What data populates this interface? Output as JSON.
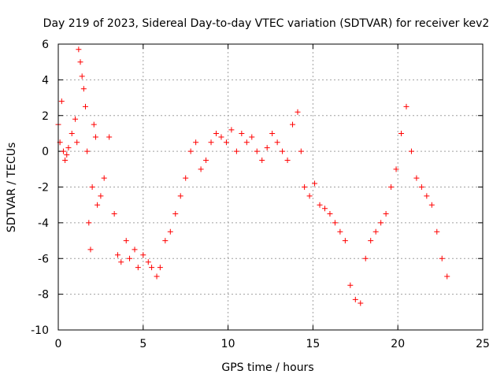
{
  "chart_data": {
    "type": "scatter",
    "title": "Day 219 of 2023, Sidereal Day-to-day VTEC variation (SDTVAR) for receiver kev2",
    "xlabel": "GPS time / hours",
    "ylabel": "SDTVAR / TECUs",
    "xlim": [
      0,
      25
    ],
    "ylim": [
      -10,
      6
    ],
    "xticks": [
      0,
      5,
      10,
      15,
      20,
      25
    ],
    "yticks": [
      -10,
      -8,
      -6,
      -4,
      -2,
      0,
      2,
      4,
      6
    ],
    "xtick_labels": [
      "0",
      "5",
      "10",
      "15",
      "20",
      "25"
    ],
    "ytick_labels": [
      "-10",
      "-8",
      "-6",
      "-4",
      "-2",
      "0",
      "2",
      "4",
      "6"
    ],
    "grid": true,
    "marker": "+",
    "series": [
      {
        "name": "SDTVAR",
        "color": "#ff0000",
        "x": [
          0.0,
          0.1,
          0.2,
          0.3,
          0.4,
          0.5,
          0.6,
          0.8,
          1.0,
          1.1,
          1.2,
          1.3,
          1.4,
          1.5,
          1.6,
          1.7,
          1.8,
          1.9,
          2.0,
          2.1,
          2.2,
          2.3,
          2.5,
          2.7,
          3.0,
          3.3,
          3.5,
          3.7,
          4.0,
          4.2,
          4.5,
          4.7,
          5.0,
          5.3,
          5.5,
          5.8,
          6.0,
          6.3,
          6.6,
          6.9,
          7.2,
          7.5,
          7.8,
          8.1,
          8.4,
          8.7,
          9.0,
          9.3,
          9.6,
          9.9,
          10.2,
          10.5,
          10.8,
          11.1,
          11.4,
          11.7,
          12.0,
          12.3,
          12.6,
          12.9,
          13.2,
          13.5,
          13.8,
          14.1,
          14.3,
          14.5,
          14.8,
          15.1,
          15.4,
          15.7,
          16.0,
          16.3,
          16.6,
          16.9,
          17.2,
          17.5,
          17.8,
          18.1,
          18.4,
          18.7,
          19.0,
          19.3,
          19.6,
          19.9,
          20.2,
          20.5,
          20.8,
          21.1,
          21.4,
          21.7,
          22.0,
          22.3,
          22.6,
          22.9
        ],
        "y": [
          1.5,
          0.5,
          2.8,
          0.0,
          -0.5,
          -0.2,
          0.2,
          1.0,
          1.8,
          0.5,
          5.7,
          5.0,
          4.2,
          3.5,
          2.5,
          0.0,
          -4.0,
          -5.5,
          -2.0,
          1.5,
          0.8,
          -3.0,
          -2.5,
          -1.5,
          0.8,
          -3.5,
          -5.8,
          -6.2,
          -5.0,
          -6.0,
          -5.5,
          -6.5,
          -5.8,
          -6.2,
          -6.5,
          -7.0,
          -6.5,
          -5.0,
          -4.5,
          -3.5,
          -2.5,
          -1.5,
          0.0,
          0.5,
          -1.0,
          -0.5,
          0.5,
          1.0,
          0.8,
          0.5,
          1.2,
          0.0,
          1.0,
          0.5,
          0.8,
          0.0,
          -0.5,
          0.2,
          1.0,
          0.5,
          0.0,
          -0.5,
          1.5,
          2.2,
          0.0,
          -2.0,
          -2.5,
          -1.8,
          -3.0,
          -3.2,
          -3.5,
          -4.0,
          -4.5,
          -5.0,
          -7.5,
          -8.3,
          -8.5,
          -6.0,
          -5.0,
          -4.5,
          -4.0,
          -3.5,
          -2.0,
          -1.0,
          1.0,
          2.5,
          0.0,
          -1.5,
          -2.0,
          -2.5,
          -3.0,
          -4.5,
          -6.0,
          -7.0
        ]
      }
    ]
  }
}
